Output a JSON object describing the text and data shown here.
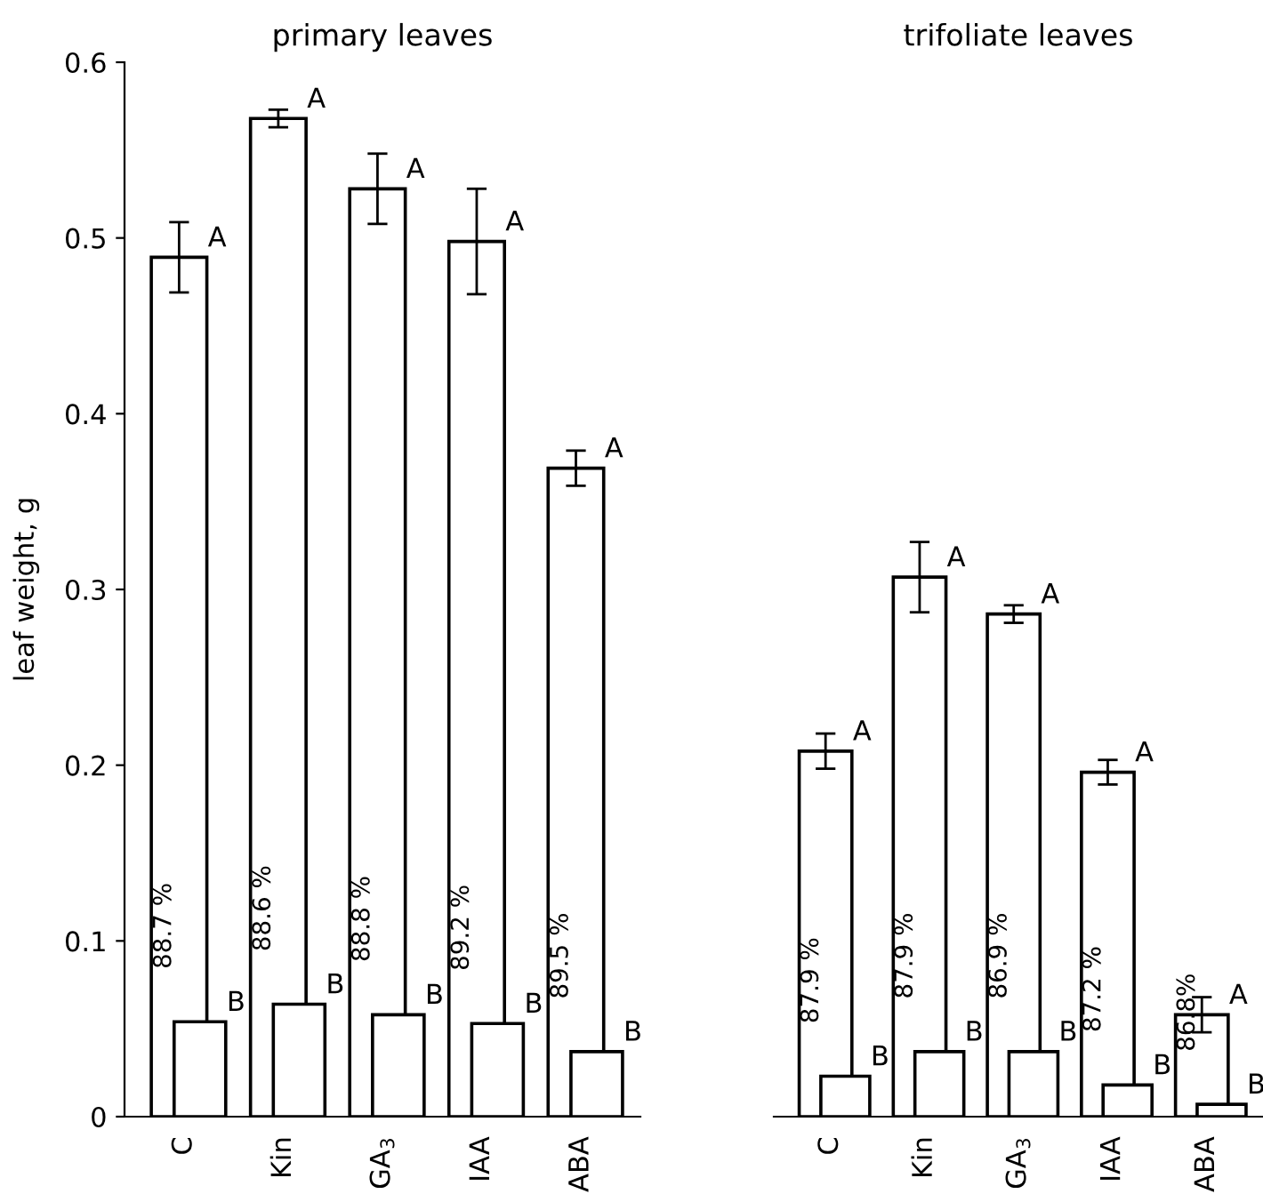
{
  "chart_data": [
    {
      "type": "bar",
      "title": "primary leaves",
      "ylabel": "leaf weight, g",
      "categories": [
        "C",
        "Kin",
        "GA$_{3}$",
        "IAA",
        "ABA"
      ],
      "ylim": [
        0,
        0.6
      ],
      "yticks": [
        0,
        0.1,
        0.2,
        0.3,
        0.4,
        0.5,
        0.6
      ],
      "grid": false,
      "legend": false,
      "series": [
        {
          "color": "#ffffff",
          "values": [
            0.489,
            0.568,
            0.528,
            0.498,
            0.369
          ],
          "errors": [
            0.02,
            0.005,
            0.02,
            0.03,
            0.01
          ],
          "value_labels": [
            "A",
            "A",
            "A",
            "A",
            "A"
          ]
        },
        {
          "color": "#ffffff",
          "values": [
            0.054,
            0.064,
            0.058,
            0.053,
            0.037
          ],
          "value_labels": [
            "B",
            "B",
            "B",
            "B",
            "B"
          ]
        }
      ],
      "annotations": [
        "88.7 %",
        "88.6 %",
        "88.8 %",
        "89.2 %",
        "89.5 %"
      ]
    },
    {
      "type": "bar",
      "title": "trifoliate leaves",
      "categories": [
        "C",
        "Kin",
        "GA$_{3}$",
        "IAA",
        "ABA"
      ],
      "ylim": [
        0,
        0.6
      ],
      "tick_labels": "x",
      "grid": false,
      "legend": false,
      "series": [
        {
          "color": "#ffffff",
          "values": [
            0.208,
            0.307,
            0.286,
            0.196,
            0.058
          ],
          "errors": [
            0.01,
            0.02,
            0.005,
            0.007,
            0.01
          ],
          "value_labels": [
            "A",
            "A",
            "A",
            "A",
            "A"
          ]
        },
        {
          "color": "#ffffff",
          "values": [
            0.023,
            0.037,
            0.037,
            0.018,
            0.007
          ],
          "value_labels": [
            "B",
            "B",
            "B",
            "B",
            "B"
          ]
        }
      ],
      "annotations": [
        "87.9 %",
        "87.9 %",
        "86.9 %",
        "87.2 %",
        "86.8%"
      ]
    }
  ]
}
